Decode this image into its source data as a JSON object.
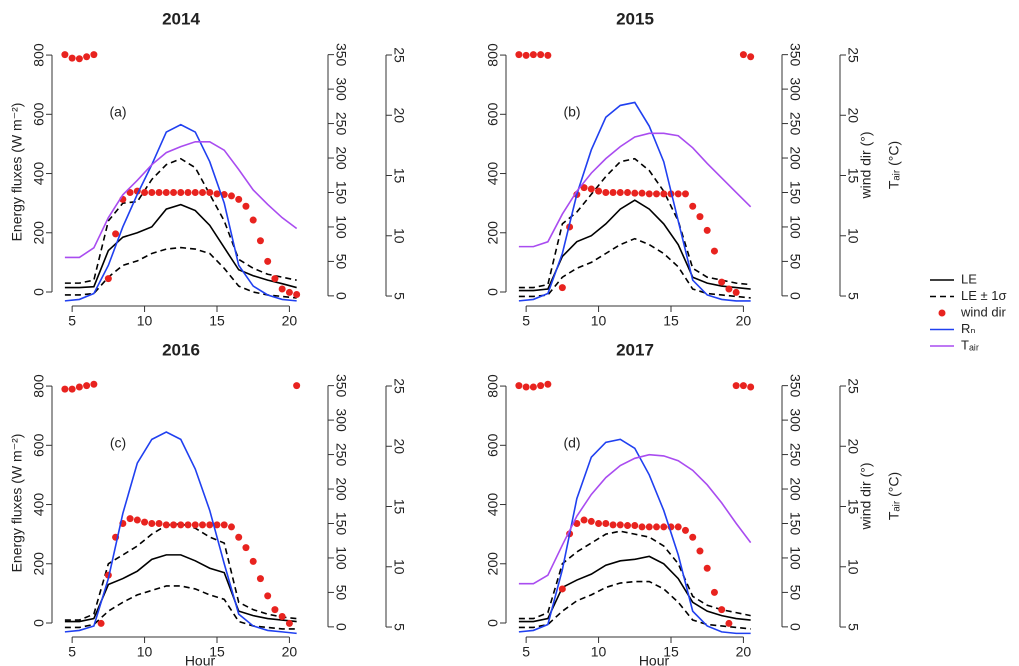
{
  "legend": "right",
  "chart_data": [
    {
      "type": "line",
      "title": "2014",
      "label": "(a)",
      "ylabel": "Energy fluxes (W m⁻²)",
      "x": [
        4.5,
        5.5,
        6.5,
        7.5,
        8.5,
        9.5,
        10.5,
        11.5,
        12.5,
        13.5,
        14.5,
        15.5,
        16.5,
        17.5,
        18.5,
        19.5,
        20.5
      ],
      "xlim": [
        4.3,
        20.8
      ],
      "xticks": [
        5,
        10,
        15,
        20
      ],
      "ylim": [
        -27,
        834
      ],
      "yticks": [
        0,
        200,
        400,
        600,
        800
      ],
      "y2lim": [
        -6,
        364
      ],
      "y2ticks": [
        0,
        50,
        100,
        150,
        200,
        250,
        300,
        350
      ],
      "y3lim": [
        4.67,
        25.83
      ],
      "y3ticks": [
        5,
        10,
        15,
        20,
        25
      ],
      "series": [
        {
          "name": "LE",
          "color": "#000000",
          "values": [
            15,
            15,
            18,
            140,
            185,
            200,
            220,
            280,
            295,
            275,
            225,
            150,
            75,
            55,
            40,
            28,
            15
          ]
        },
        {
          "name": "LE ± 1σ",
          "color": "#000000",
          "dash": true,
          "values": [
            30,
            30,
            40,
            240,
            300,
            305,
            380,
            430,
            450,
            420,
            330,
            240,
            110,
            80,
            60,
            50,
            40
          ],
          "lower": [
            -10,
            -10,
            -5,
            50,
            90,
            105,
            130,
            145,
            150,
            145,
            130,
            80,
            20,
            0,
            -10,
            -15,
            -20
          ]
        },
        {
          "name": "wind dir",
          "color": "#e8231f",
          "marker": "dot",
          "axis": "y2",
          "x": [
            4.5,
            5,
            5.5,
            6,
            6.5,
            7,
            7.5,
            8,
            8.5,
            9,
            9.5,
            10,
            10.5,
            11,
            11.5,
            12,
            12.5,
            13,
            13.5,
            14,
            14.5,
            15,
            15.5,
            16,
            16.5,
            17,
            17.5,
            18,
            18.5,
            19,
            19.5,
            20,
            20.5
          ],
          "values": [
            350,
            345,
            344,
            347,
            350,
            null,
            25,
            90,
            140,
            150,
            152,
            150,
            150,
            150,
            150,
            150,
            150,
            150,
            150,
            150,
            150,
            148,
            147,
            145,
            140,
            130,
            110,
            80,
            50,
            25,
            10,
            5,
            2
          ]
        },
        {
          "name": "Rₙ",
          "color": "#2040f0",
          "values": [
            -30,
            -25,
            -5,
            90,
            220,
            330,
            430,
            540,
            565,
            540,
            440,
            300,
            90,
            20,
            -10,
            -25,
            -30
          ]
        },
        {
          "name": "Tₐᵢᵣ",
          "color": "#a94cf0",
          "axis": "y3",
          "values": [
            8.2,
            8.2,
            9,
            11.5,
            13.4,
            14.6,
            15.9,
            16.9,
            17.4,
            17.8,
            17.8,
            17.1,
            15.5,
            13.8,
            12.6,
            11.5,
            10.6
          ]
        }
      ]
    },
    {
      "type": "line",
      "title": "2015",
      "label": "(b)",
      "y2label": "wind dir (°)",
      "y3label": "Tₐᵢᵣ (°C)",
      "x": [
        4.5,
        5.5,
        6.5,
        7.5,
        8.5,
        9.5,
        10.5,
        11.5,
        12.5,
        13.5,
        14.5,
        15.5,
        16.5,
        17.5,
        18.5,
        19.5,
        20.5
      ],
      "xlim": [
        4.3,
        20.8
      ],
      "xticks": [
        5,
        10,
        15,
        20
      ],
      "ylim": [
        -27,
        834
      ],
      "yticks": [
        0,
        200,
        400,
        600,
        800
      ],
      "y2lim": [
        -6,
        364
      ],
      "y2ticks": [
        0,
        50,
        100,
        150,
        200,
        250,
        300,
        350
      ],
      "y3lim": [
        4.67,
        25.83
      ],
      "y3ticks": [
        5,
        10,
        15,
        20,
        25
      ],
      "series": [
        {
          "name": "LE",
          "color": "#000000",
          "values": [
            5,
            5,
            10,
            120,
            170,
            190,
            230,
            280,
            310,
            280,
            230,
            160,
            50,
            30,
            20,
            15,
            10
          ]
        },
        {
          "name": "LE ± 1σ",
          "color": "#000000",
          "dash": true,
          "values": [
            15,
            15,
            25,
            230,
            270,
            330,
            390,
            440,
            450,
            410,
            340,
            240,
            80,
            50,
            40,
            30,
            25
          ],
          "lower": [
            -15,
            -15,
            -10,
            50,
            80,
            100,
            130,
            160,
            180,
            160,
            130,
            85,
            10,
            -5,
            -10,
            -15,
            -20
          ]
        },
        {
          "name": "wind dir",
          "color": "#e8231f",
          "marker": "dot",
          "axis": "y2",
          "x": [
            4.5,
            5,
            5.5,
            6,
            6.5,
            7,
            7.5,
            8,
            8.5,
            9,
            9.5,
            10,
            10.5,
            11,
            11.5,
            12,
            12.5,
            13,
            13.5,
            14,
            14.5,
            15,
            15.5,
            16,
            16.5,
            17,
            17.5,
            18,
            18.5,
            19,
            19.5,
            20,
            20.5
          ],
          "values": [
            350,
            349,
            350,
            350,
            349,
            null,
            12,
            100,
            147,
            157,
            155,
            152,
            150,
            150,
            150,
            150,
            149,
            149,
            148,
            148,
            148,
            148,
            148,
            148,
            130,
            115,
            95,
            65,
            20,
            10,
            5,
            350,
            347
          ]
        },
        {
          "name": "Rₙ",
          "color": "#2040f0",
          "values": [
            -30,
            -25,
            -5,
            130,
            330,
            480,
            590,
            630,
            640,
            560,
            440,
            240,
            40,
            -10,
            -25,
            -30,
            -30
          ]
        },
        {
          "name": "Tₐᵢᵣ",
          "color": "#a94cf0",
          "axis": "y3",
          "values": [
            9.1,
            9.1,
            9.5,
            11.8,
            13.7,
            15.2,
            16.4,
            17.4,
            18.2,
            18.5,
            18.5,
            18.3,
            17.3,
            16.0,
            14.8,
            13.6,
            12.4
          ]
        }
      ]
    },
    {
      "type": "line",
      "title": "2016",
      "label": "(c)",
      "ylabel": "Energy fluxes (W m⁻²)",
      "xlabel": "Hour",
      "x": [
        4.5,
        5.5,
        6.5,
        7.5,
        8.5,
        9.5,
        10.5,
        11.5,
        12.5,
        13.5,
        14.5,
        15.5,
        16.5,
        17.5,
        18.5,
        19.5,
        20.5
      ],
      "xlim": [
        4.3,
        20.8
      ],
      "xticks": [
        5,
        10,
        15,
        20
      ],
      "ylim": [
        -27,
        834
      ],
      "yticks": [
        0,
        200,
        400,
        600,
        800
      ],
      "y2lim": [
        -6,
        364
      ],
      "y2ticks": [
        0,
        50,
        100,
        150,
        200,
        250,
        300,
        350
      ],
      "y3lim": [
        4.67,
        25.83
      ],
      "y3ticks": [
        5,
        10,
        15,
        20,
        25
      ],
      "series": [
        {
          "name": "LE",
          "color": "#000000",
          "values": [
            5,
            5,
            15,
            130,
            150,
            175,
            215,
            230,
            230,
            210,
            185,
            170,
            40,
            25,
            15,
            10,
            5
          ]
        },
        {
          "name": "LE ± 1σ",
          "color": "#000000",
          "dash": true,
          "values": [
            10,
            10,
            30,
            200,
            230,
            260,
            300,
            330,
            335,
            320,
            290,
            270,
            70,
            45,
            30,
            20,
            15
          ],
          "lower": [
            -15,
            -15,
            -5,
            40,
            70,
            95,
            110,
            125,
            125,
            115,
            95,
            80,
            5,
            -10,
            -15,
            -20,
            -20
          ]
        },
        {
          "name": "wind dir",
          "color": "#e8231f",
          "marker": "dot",
          "axis": "y2",
          "x": [
            4.5,
            5,
            5.5,
            6,
            6.5,
            7,
            7.5,
            8,
            8.5,
            9,
            9.5,
            10,
            10.5,
            11,
            11.5,
            12,
            12.5,
            13,
            13.5,
            14,
            14.5,
            15,
            15.5,
            16,
            16.5,
            17,
            17.5,
            18,
            18.5,
            19,
            19.5,
            20,
            20.5
          ],
          "values": [
            345,
            345,
            348,
            350,
            352,
            5,
            75,
            130,
            150,
            157,
            155,
            152,
            150,
            150,
            148,
            148,
            148,
            148,
            148,
            148,
            148,
            148,
            148,
            145,
            130,
            115,
            95,
            70,
            45,
            25,
            15,
            5,
            350
          ]
        },
        {
          "name": "Rₙ",
          "color": "#2040f0",
          "values": [
            -30,
            -25,
            -10,
            150,
            370,
            540,
            620,
            645,
            620,
            520,
            380,
            200,
            30,
            -10,
            -25,
            -30,
            -35
          ]
        }
      ]
    },
    {
      "type": "line",
      "title": "2017",
      "label": "(d)",
      "y2label": "wind dir (°)",
      "y3label": "Tₐᵢᵣ (°C)",
      "xlabel": "Hour",
      "x": [
        4.5,
        5.5,
        6.5,
        7.5,
        8.5,
        9.5,
        10.5,
        11.5,
        12.5,
        13.5,
        14.5,
        15.5,
        16.5,
        17.5,
        18.5,
        19.5,
        20.5
      ],
      "xlim": [
        4.3,
        20.8
      ],
      "xticks": [
        5,
        10,
        15,
        20
      ],
      "ylim": [
        -27,
        834
      ],
      "yticks": [
        0,
        200,
        400,
        600,
        800
      ],
      "y2lim": [
        -6,
        364
      ],
      "y2ticks": [
        0,
        50,
        100,
        150,
        200,
        250,
        300,
        350
      ],
      "y3lim": [
        4.67,
        25.83
      ],
      "y3ticks": [
        5,
        10,
        15,
        20,
        25
      ],
      "series": [
        {
          "name": "LE",
          "color": "#000000",
          "values": [
            5,
            5,
            15,
            120,
            145,
            165,
            195,
            210,
            215,
            225,
            200,
            150,
            70,
            40,
            25,
            15,
            10
          ]
        },
        {
          "name": "LE ± 1σ",
          "color": "#000000",
          "dash": true,
          "values": [
            15,
            15,
            35,
            200,
            240,
            270,
            300,
            310,
            300,
            290,
            260,
            200,
            90,
            60,
            45,
            35,
            25
          ],
          "lower": [
            -15,
            -15,
            -5,
            40,
            75,
            95,
            120,
            135,
            140,
            140,
            115,
            70,
            10,
            -5,
            -10,
            -15,
            -20
          ]
        },
        {
          "name": "wind dir",
          "color": "#e8231f",
          "marker": "dot",
          "axis": "y2",
          "x": [
            4.5,
            5,
            5.5,
            6,
            6.5,
            7,
            7.5,
            8,
            8.5,
            9,
            9.5,
            10,
            10.5,
            11,
            11.5,
            12,
            12.5,
            13,
            13.5,
            14,
            14.5,
            15,
            15.5,
            16,
            16.5,
            17,
            17.5,
            18,
            18.5,
            19,
            19.5,
            20,
            20.5
          ],
          "values": [
            350,
            348,
            348,
            350,
            352,
            null,
            55,
            135,
            150,
            155,
            153,
            150,
            150,
            148,
            148,
            147,
            147,
            145,
            145,
            145,
            145,
            145,
            145,
            140,
            130,
            110,
            85,
            50,
            25,
            5,
            350,
            350,
            348
          ]
        },
        {
          "name": "Rₙ",
          "color": "#2040f0",
          "values": [
            -30,
            -25,
            -5,
            180,
            420,
            560,
            610,
            620,
            590,
            500,
            380,
            230,
            40,
            -10,
            -30,
            -35,
            -35
          ]
        },
        {
          "name": "Tₐᵢᵣ",
          "color": "#a94cf0",
          "axis": "y3",
          "values": [
            8.6,
            8.6,
            9.3,
            11.8,
            14.2,
            16.0,
            17.4,
            18.4,
            19.0,
            19.3,
            19.2,
            18.8,
            18.0,
            16.8,
            15.3,
            13.6,
            12.0
          ]
        }
      ]
    }
  ]
}
